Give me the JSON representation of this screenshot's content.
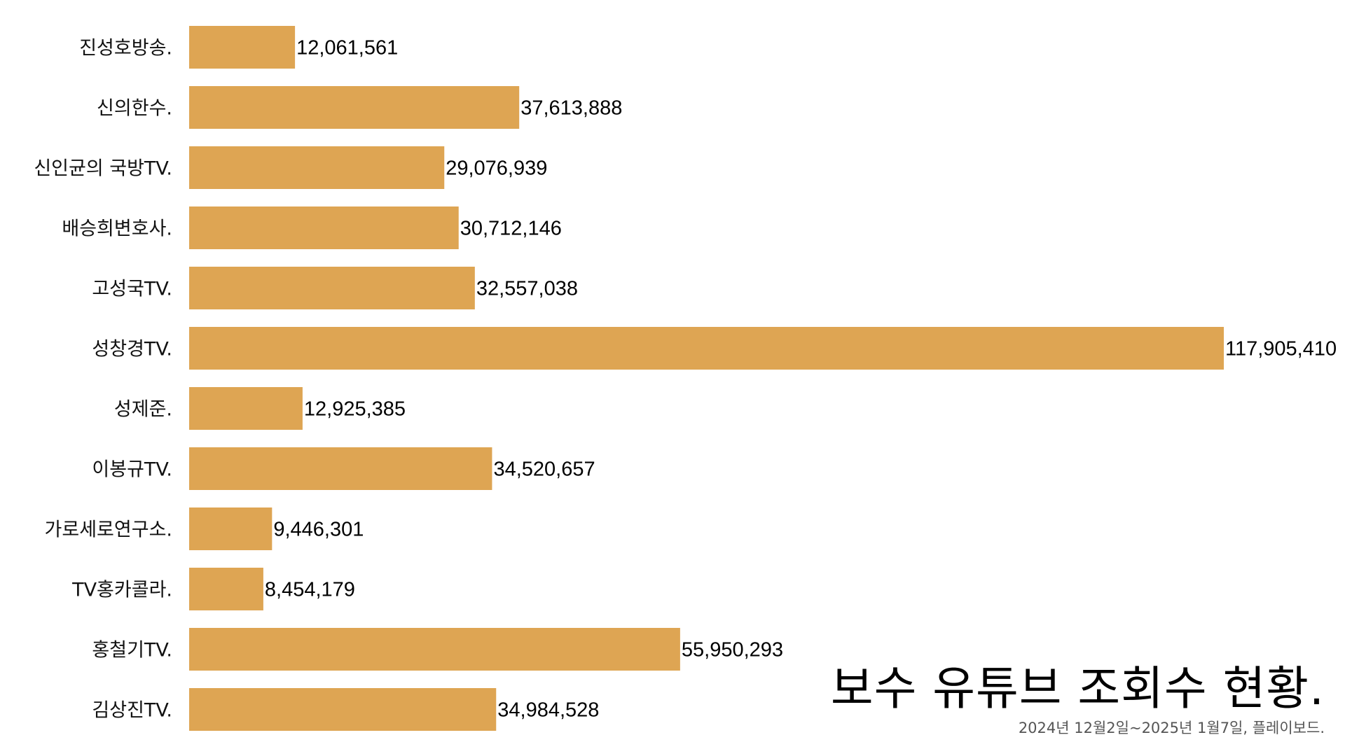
{
  "chart_data": {
    "type": "bar",
    "orientation": "horizontal",
    "title": "보수 유튜브 조회수 현황.",
    "subtitle": "2024년 12월2일~2025년 1월7일, 플레이보드.",
    "categories": [
      "진성호방송.",
      "신의한수.",
      "신인균의 국방TV.",
      "배승희변호사.",
      "고성국TV.",
      "성창경TV.",
      "성제준.",
      "이봉규TV.",
      "가로세로연구소.",
      "TV홍카콜라.",
      "홍철기TV.",
      "김상진TV."
    ],
    "values": [
      12061561,
      37613888,
      29076939,
      30712146,
      32557038,
      117905410,
      12925385,
      34520657,
      9446301,
      8454179,
      55950293,
      34984528
    ],
    "value_labels": [
      "12,061,561",
      "37,613,888",
      "29,076,939",
      "30,712,146",
      "32,557,038",
      "117,905,410",
      "12,925,385",
      "34,520,657",
      "9,446,301",
      "8,454,179",
      "55,950,293",
      "34,984,528"
    ],
    "bar_color": "#DEA553",
    "xlim": [
      0,
      117905410
    ],
    "grid": false,
    "legend": "none"
  }
}
